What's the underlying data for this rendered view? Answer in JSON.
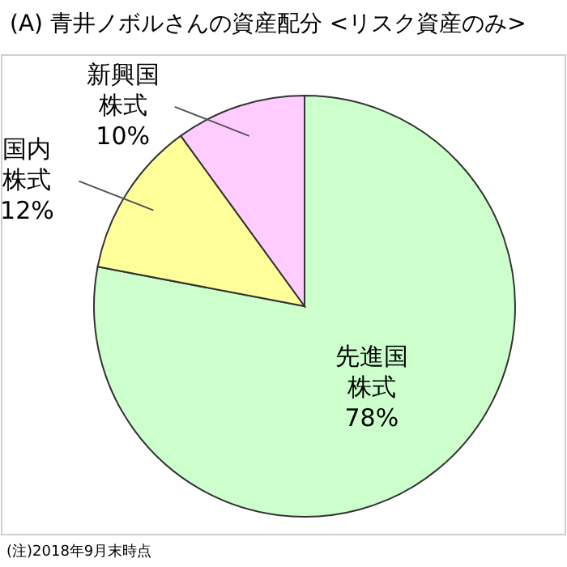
{
  "chart_data": {
    "type": "pie",
    "title": "(A) 青井ノボルさんの資産配分 <リスク資産のみ>",
    "categories": [
      "先進国株式",
      "国内株式",
      "新興国株式"
    ],
    "values": [
      78,
      12,
      10
    ],
    "colors": [
      "#ccffcc",
      "#ffff99",
      "#ffccff"
    ],
    "value_labels": [
      "78%",
      "12%",
      "10%"
    ],
    "annotations": [
      "(注)2018年9月末時点"
    ]
  }
}
